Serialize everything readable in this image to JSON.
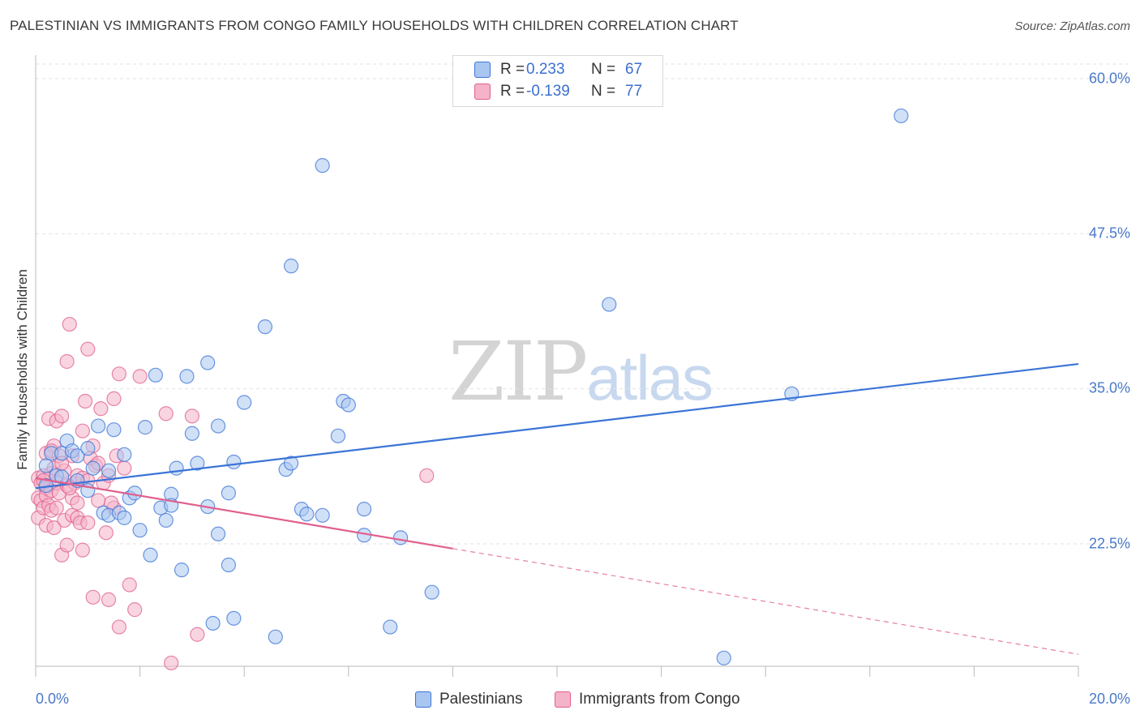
{
  "title": "PALESTINIAN VS IMMIGRANTS FROM CONGO FAMILY HOUSEHOLDS WITH CHILDREN CORRELATION CHART",
  "source": "Source: ZipAtlas.com",
  "watermark": {
    "zip": "ZIP",
    "atlas": "atlas"
  },
  "colors": {
    "blue": "#3b74d6",
    "blue_fill": "#a9c6f0",
    "pink": "#e0608e",
    "pink_fill": "#f4b3c9",
    "grid": "#e2e2e2",
    "axis_text": "#4a79c8"
  },
  "legend": {
    "rows": [
      {
        "r_label": "R =",
        "r_value": "0.233",
        "n_label": "N =",
        "n_value": "67"
      },
      {
        "r_label": "R =",
        "r_value": "-0.139",
        "n_label": "N =",
        "n_value": "77"
      }
    ]
  },
  "bottom_legend": {
    "series1": "Palestinians",
    "series2": "Immigrants from Congo"
  },
  "chart_data": {
    "type": "scatter",
    "title": "PALESTINIAN VS IMMIGRANTS FROM CONGO FAMILY HOUSEHOLDS WITH CHILDREN CORRELATION CHART",
    "xlabel": "",
    "ylabel": "Family Households with Children",
    "xlim": [
      0,
      20
    ],
    "ylim": [
      12,
      62
    ],
    "x_ticks": [
      "0.0%",
      "20.0%"
    ],
    "y_ticks": [
      "22.5%",
      "35.0%",
      "47.5%",
      "60.0%"
    ],
    "y_tick_values": [
      22.5,
      35.0,
      47.5,
      60.0
    ],
    "series": [
      {
        "name": "Palestinians",
        "trend": {
          "x": [
            0,
            20
          ],
          "y": [
            27.0,
            37.0
          ],
          "dashed_from": null
        },
        "points": [
          [
            0.2,
            27.2
          ],
          [
            0.2,
            28.8
          ],
          [
            0.3,
            29.8
          ],
          [
            0.4,
            28.0
          ],
          [
            0.5,
            29.8
          ],
          [
            0.6,
            30.8
          ],
          [
            0.7,
            30.0
          ],
          [
            0.8,
            29.6
          ],
          [
            0.8,
            27.6
          ],
          [
            1.0,
            26.8
          ],
          [
            1.1,
            28.6
          ],
          [
            1.2,
            32.0
          ],
          [
            1.3,
            25.0
          ],
          [
            1.4,
            28.4
          ],
          [
            1.4,
            24.8
          ],
          [
            1.5,
            31.7
          ],
          [
            1.6,
            25.0
          ],
          [
            1.7,
            29.7
          ],
          [
            1.7,
            24.6
          ],
          [
            1.8,
            26.2
          ],
          [
            1.9,
            26.6
          ],
          [
            2.0,
            23.6
          ],
          [
            2.1,
            31.9
          ],
          [
            2.2,
            21.6
          ],
          [
            2.3,
            36.1
          ],
          [
            2.4,
            25.4
          ],
          [
            2.5,
            24.4
          ],
          [
            2.6,
            26.5
          ],
          [
            2.6,
            25.6
          ],
          [
            2.7,
            28.6
          ],
          [
            2.8,
            20.4
          ],
          [
            2.9,
            36.0
          ],
          [
            3.0,
            31.4
          ],
          [
            3.1,
            29.0
          ],
          [
            3.3,
            25.5
          ],
          [
            3.3,
            37.1
          ],
          [
            3.4,
            16.1
          ],
          [
            3.5,
            23.3
          ],
          [
            3.5,
            32.0
          ],
          [
            3.7,
            26.6
          ],
          [
            3.7,
            20.8
          ],
          [
            3.8,
            16.5
          ],
          [
            3.8,
            29.1
          ],
          [
            4.0,
            33.9
          ],
          [
            4.4,
            40.0
          ],
          [
            4.6,
            15.0
          ],
          [
            4.8,
            28.5
          ],
          [
            4.9,
            29.0
          ],
          [
            4.9,
            44.9
          ],
          [
            5.1,
            25.3
          ],
          [
            5.2,
            24.9
          ],
          [
            5.5,
            53.0
          ],
          [
            5.5,
            24.8
          ],
          [
            5.8,
            31.2
          ],
          [
            5.9,
            34.0
          ],
          [
            6.0,
            33.7
          ],
          [
            6.3,
            23.2
          ],
          [
            6.3,
            25.3
          ],
          [
            6.8,
            15.8
          ],
          [
            7.0,
            23.0
          ],
          [
            7.6,
            18.6
          ],
          [
            11.0,
            41.8
          ],
          [
            13.2,
            13.3
          ],
          [
            14.5,
            34.6
          ],
          [
            16.6,
            57.0
          ],
          [
            1.0,
            30.2
          ],
          [
            0.5,
            27.9
          ]
        ]
      },
      {
        "name": "Immigrants from Congo",
        "trend": {
          "x": [
            0,
            20
          ],
          "y": [
            27.8,
            13.6
          ],
          "dashed_from": 8.0
        },
        "points": [
          [
            0.05,
            27.8
          ],
          [
            0.05,
            26.2
          ],
          [
            0.05,
            24.6
          ],
          [
            0.1,
            27.4
          ],
          [
            0.1,
            26.0
          ],
          [
            0.15,
            28.0
          ],
          [
            0.15,
            25.4
          ],
          [
            0.2,
            29.8
          ],
          [
            0.2,
            27.0
          ],
          [
            0.2,
            26.4
          ],
          [
            0.25,
            25.6
          ],
          [
            0.25,
            32.6
          ],
          [
            0.3,
            28.2
          ],
          [
            0.3,
            26.8
          ],
          [
            0.3,
            25.2
          ],
          [
            0.35,
            30.4
          ],
          [
            0.35,
            28.6
          ],
          [
            0.4,
            32.4
          ],
          [
            0.4,
            27.4
          ],
          [
            0.4,
            25.4
          ],
          [
            0.45,
            29.6
          ],
          [
            0.45,
            26.6
          ],
          [
            0.5,
            21.6
          ],
          [
            0.5,
            32.8
          ],
          [
            0.55,
            28.4
          ],
          [
            0.55,
            24.4
          ],
          [
            0.6,
            22.4
          ],
          [
            0.6,
            27.2
          ],
          [
            0.6,
            37.2
          ],
          [
            0.65,
            40.2
          ],
          [
            0.7,
            24.8
          ],
          [
            0.7,
            29.6
          ],
          [
            0.7,
            26.2
          ],
          [
            0.75,
            27.4
          ],
          [
            0.8,
            24.6
          ],
          [
            0.8,
            28.0
          ],
          [
            0.85,
            24.2
          ],
          [
            0.9,
            31.6
          ],
          [
            0.9,
            22.0
          ],
          [
            0.9,
            27.8
          ],
          [
            0.95,
            34.0
          ],
          [
            1.0,
            38.2
          ],
          [
            1.0,
            27.6
          ],
          [
            1.0,
            24.2
          ],
          [
            1.05,
            29.4
          ],
          [
            1.1,
            18.2
          ],
          [
            1.1,
            30.4
          ],
          [
            1.15,
            28.8
          ],
          [
            1.2,
            29.0
          ],
          [
            1.25,
            33.4
          ],
          [
            1.3,
            27.4
          ],
          [
            1.35,
            23.4
          ],
          [
            1.4,
            28.0
          ],
          [
            1.4,
            18.0
          ],
          [
            1.5,
            34.2
          ],
          [
            1.5,
            25.4
          ],
          [
            1.55,
            29.6
          ],
          [
            1.6,
            36.2
          ],
          [
            1.6,
            15.8
          ],
          [
            1.7,
            28.6
          ],
          [
            1.8,
            19.2
          ],
          [
            1.9,
            17.2
          ],
          [
            2.0,
            36.0
          ],
          [
            2.5,
            33.0
          ],
          [
            2.6,
            12.9
          ],
          [
            3.0,
            32.8
          ],
          [
            3.1,
            15.2
          ],
          [
            0.2,
            24.0
          ],
          [
            0.3,
            30.0
          ],
          [
            0.5,
            29.0
          ],
          [
            0.8,
            25.8
          ],
          [
            1.2,
            26.0
          ],
          [
            0.35,
            23.8
          ],
          [
            1.45,
            25.8
          ],
          [
            7.5,
            28.0
          ],
          [
            0.15,
            27.6
          ],
          [
            0.65,
            27.0
          ]
        ]
      }
    ]
  }
}
